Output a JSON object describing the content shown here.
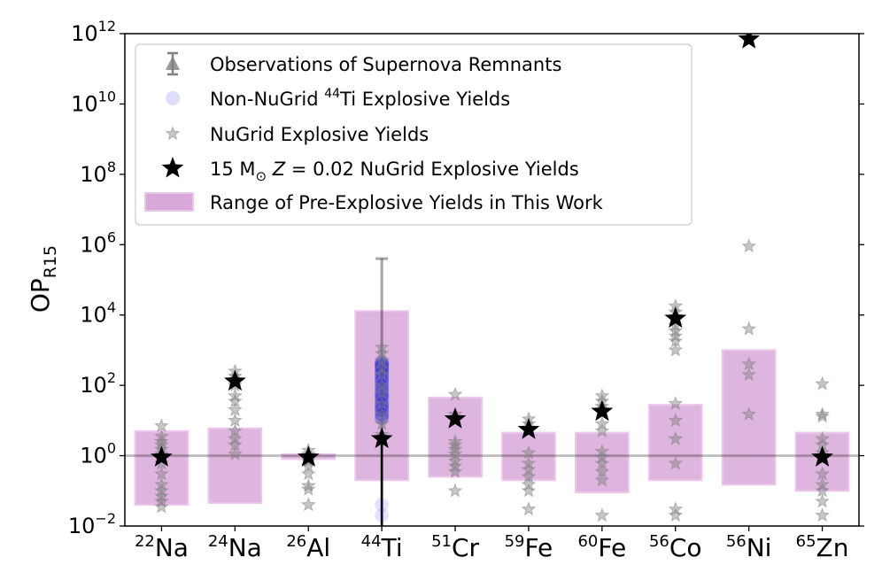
{
  "chart_data": {
    "type": "scatter",
    "ylabel": "OP",
    "ylabel_sub": "R15",
    "y_scale": "log",
    "ylim": [
      0.01,
      1000000000000.0
    ],
    "grid": false,
    "legend_position": "top-left",
    "reference_line_y": 1,
    "yticks": [
      {
        "value": 0.01,
        "base": "10",
        "exp": "−2"
      },
      {
        "value": 1,
        "base": "10",
        "exp": "0"
      },
      {
        "value": 100,
        "base": "10",
        "exp": "2"
      },
      {
        "value": 10000,
        "base": "10",
        "exp": "4"
      },
      {
        "value": 1000000,
        "base": "10",
        "exp": "6"
      },
      {
        "value": 100000000,
        "base": "10",
        "exp": "8"
      },
      {
        "value": 10000000000,
        "base": "10",
        "exp": "10"
      },
      {
        "value": 1000000000000,
        "base": "10",
        "exp": "12"
      }
    ],
    "categories": [
      {
        "mass": "22",
        "element": "Na"
      },
      {
        "mass": "24",
        "element": "Na"
      },
      {
        "mass": "26",
        "element": "Al"
      },
      {
        "mass": "44",
        "element": "Ti"
      },
      {
        "mass": "51",
        "element": "Cr"
      },
      {
        "mass": "59",
        "element": "Fe"
      },
      {
        "mass": "60",
        "element": "Fe"
      },
      {
        "mass": "56",
        "element": "Co"
      },
      {
        "mass": "56",
        "element": "Ni"
      },
      {
        "mass": "65",
        "element": "Zn"
      }
    ],
    "legend": [
      {
        "key": "obs",
        "label": "Observations of Supernova Remnants"
      },
      {
        "key": "nonnugrid",
        "label_pre": "Non-NuGrid ",
        "label_sup": "44",
        "label_post": "Ti Explosive Yields"
      },
      {
        "key": "nugrid",
        "label": "NuGrid Explosive Yields"
      },
      {
        "key": "m15",
        "label_pre": "15 M",
        "label_sun": "⊙",
        "label_z": "Z",
        "label_post": " = 0.02 NuGrid Explosive Yields"
      },
      {
        "key": "range",
        "label": "Range of Pre-Explosive Yields in This Work"
      }
    ],
    "series": [
      {
        "key": "range",
        "type": "bar_range",
        "color": "#d8a8d8",
        "values": [
          [
            0.04,
            5
          ],
          [
            0.045,
            6
          ],
          [
            0.8,
            1.1
          ],
          [
            0.2,
            13000
          ],
          [
            0.25,
            45
          ],
          [
            0.2,
            4.5
          ],
          [
            0.09,
            4.5
          ],
          [
            0.2,
            28
          ],
          [
            0.15,
            1000
          ],
          [
            0.1,
            4.5
          ]
        ]
      },
      {
        "key": "nugrid",
        "type": "scatter",
        "color": "#808080",
        "points": [
          [
            0,
            [
              7,
              3.5,
              2.5,
              2,
              1.5,
              1.1,
              0.6,
              0.3,
              0.15,
              0.1,
              0.07,
              0.05,
              0.035
            ]
          ],
          [
            1,
            [
              250,
              180,
              100,
              50,
              35,
              20,
              10,
              5,
              3,
              2,
              1.1
            ]
          ],
          [
            2,
            [
              1.4,
              1.1,
              0.7,
              0.5,
              0.3,
              0.14,
              0.11,
              0.04
            ]
          ],
          [
            3,
            [
              1200,
              800,
              500,
              300,
              200,
              100,
              60,
              30,
              15,
              8,
              4
            ]
          ],
          [
            4,
            [
              55,
              15,
              2.5,
              2,
              1.5,
              1.1,
              0.7,
              0.5,
              0.35,
              0.1
            ]
          ],
          [
            5,
            [
              11,
              8,
              5,
              1.2,
              0.6,
              0.4,
              0.25,
              0.15,
              0.1,
              0.03
            ]
          ],
          [
            6,
            [
              50,
              35,
              25,
              8,
              5,
              1.3,
              0.9,
              0.6,
              0.35,
              0.2,
              0.02
            ]
          ],
          [
            7,
            [
              18000,
              12000,
              8000,
              5000,
              3500,
              2500,
              1800,
              1000,
              30,
              10,
              3,
              0.6,
              0.03,
              0.02
            ]
          ],
          [
            8,
            [
              900000,
              4000,
              400,
              200,
              15
            ]
          ],
          [
            9,
            [
              110,
              15,
              13,
              3,
              2,
              1.2,
              0.3,
              0.15,
              0.1,
              0.05,
              0.02
            ]
          ]
        ]
      },
      {
        "key": "nonnugrid",
        "type": "scatter",
        "color": "#1f1fe0",
        "points": [
          [
            3,
            [
              450,
              400,
              350,
              300,
              250,
              200,
              160,
              130,
              100,
              80,
              60,
              50,
              40,
              30,
              25,
              20,
              15,
              12,
              0.04,
              0.02
            ]
          ]
        ]
      },
      {
        "key": "m15",
        "type": "scatter",
        "color": "#000000",
        "points": [
          [
            0,
            [
              0.9
            ]
          ],
          [
            1,
            [
              130
            ]
          ],
          [
            2,
            [
              0.9
            ]
          ],
          [
            3,
            [
              3
            ]
          ],
          [
            4,
            [
              11
            ]
          ],
          [
            5,
            [
              5.5
            ]
          ],
          [
            6,
            [
              18
            ]
          ],
          [
            7,
            [
              8000
            ]
          ],
          [
            8,
            [
              700000000000
            ]
          ],
          [
            9,
            [
              0.9
            ]
          ]
        ]
      },
      {
        "key": "obs",
        "type": "errorbar",
        "color": "#808080",
        "points": [
          {
            "category": 3,
            "low": 0.01,
            "high": 400000
          }
        ]
      }
    ]
  }
}
